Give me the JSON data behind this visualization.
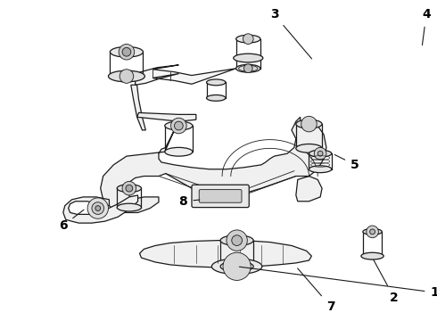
{
  "background_color": "#ffffff",
  "line_color": "#1a1a1a",
  "label_color": "#000000",
  "label_fontsize": 10,
  "labels": {
    "1": {
      "text": [
        0.555,
        0.085
      ],
      "arrow": [
        0.5,
        0.185
      ]
    },
    "2": {
      "text": [
        0.91,
        0.098
      ],
      "arrow": [
        0.875,
        0.14
      ]
    },
    "3": {
      "text": [
        0.33,
        0.95
      ],
      "arrow": [
        0.375,
        0.875
      ]
    },
    "4": {
      "text": [
        0.515,
        0.952
      ],
      "arrow": [
        0.49,
        0.87
      ]
    },
    "5": {
      "text": [
        0.72,
        0.64
      ],
      "arrow": [
        0.658,
        0.628
      ]
    },
    "6": {
      "text": [
        0.148,
        0.23
      ],
      "arrow": [
        0.168,
        0.348
      ]
    },
    "7": {
      "text": [
        0.41,
        0.055
      ],
      "arrow": [
        0.41,
        0.148
      ]
    },
    "8": {
      "text": [
        0.4,
        0.51
      ],
      "arrow": [
        0.455,
        0.508
      ]
    }
  }
}
